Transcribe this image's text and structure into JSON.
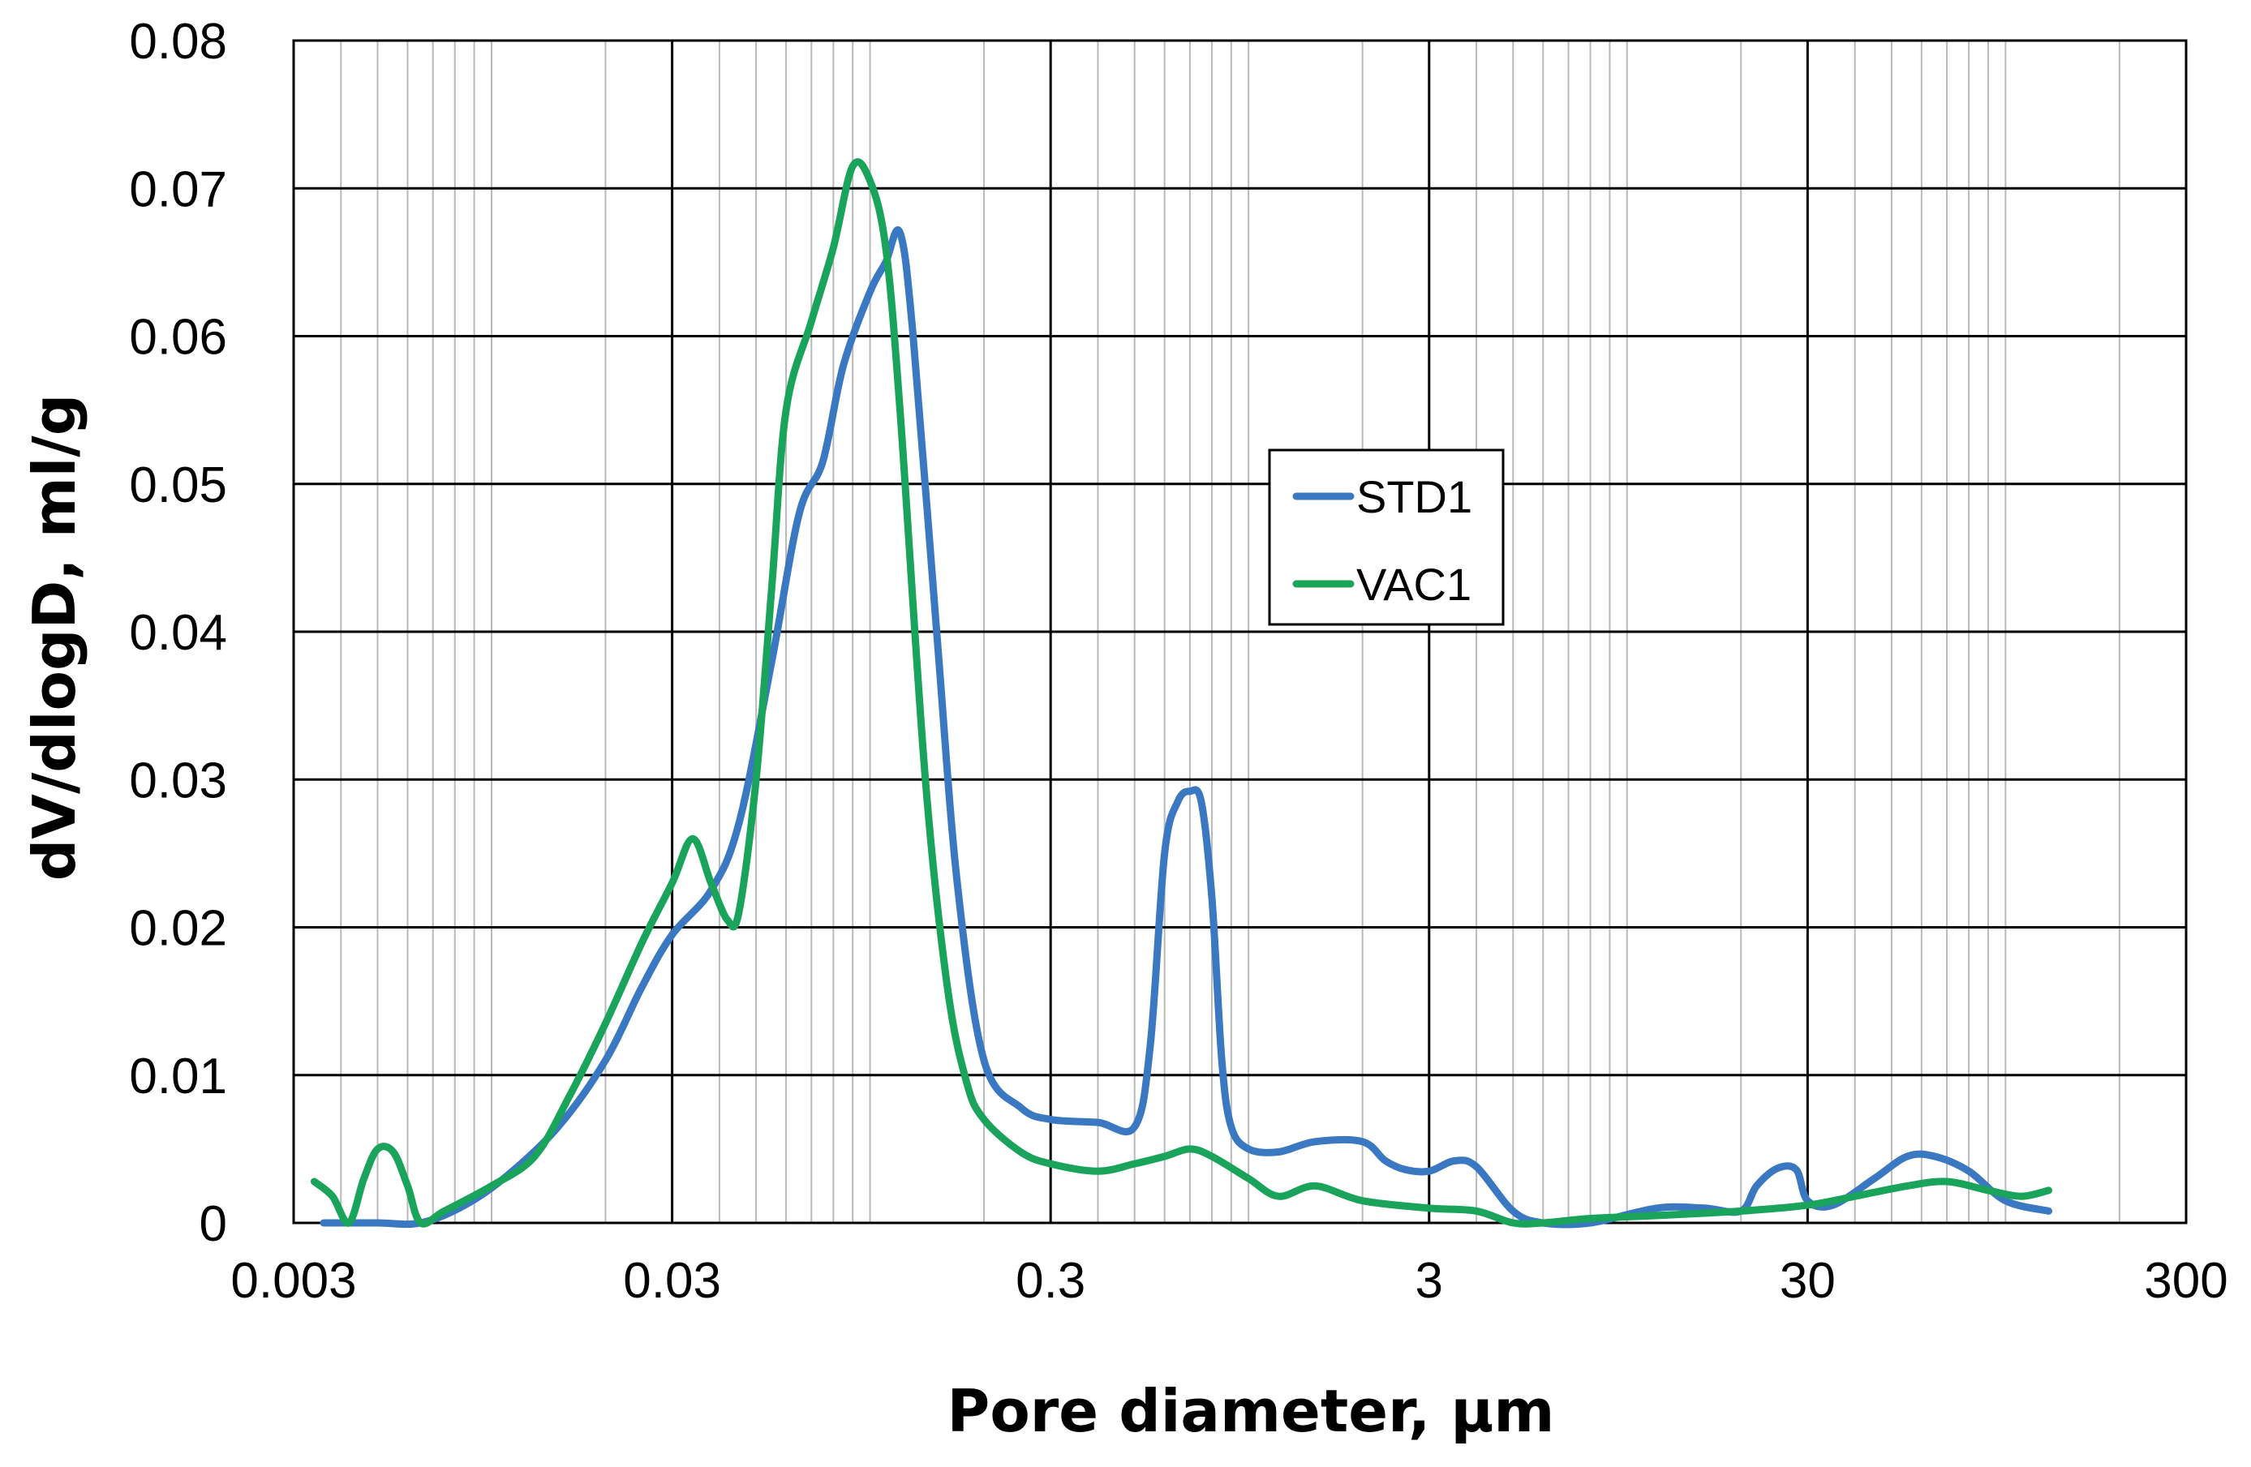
{
  "chart_data": {
    "type": "line",
    "xlabel": "Pore diameter, µm",
    "ylabel": "dV/dlogD, ml/g",
    "x_scale": "log",
    "xlim": [
      0.003,
      300
    ],
    "ylim": [
      0,
      0.08
    ],
    "x_ticks": [
      "0.003",
      "0.03",
      "0.3",
      "3",
      "30",
      "300"
    ],
    "y_ticks": [
      "0",
      "0.01",
      "0.02",
      "0.03",
      "0.04",
      "0.05",
      "0.06",
      "0.07",
      "0.08"
    ],
    "grid": true,
    "legend_position": "center",
    "series": [
      {
        "name": "STD1",
        "color": "#3a78c2",
        "points": [
          [
            0.0036,
            0.0
          ],
          [
            0.005,
            0.0
          ],
          [
            0.0065,
            0.0
          ],
          [
            0.0085,
            0.0012
          ],
          [
            0.011,
            0.0032
          ],
          [
            0.015,
            0.0065
          ],
          [
            0.02,
            0.011
          ],
          [
            0.025,
            0.016
          ],
          [
            0.03,
            0.0195
          ],
          [
            0.038,
            0.0225
          ],
          [
            0.045,
            0.027
          ],
          [
            0.055,
            0.038
          ],
          [
            0.065,
            0.048
          ],
          [
            0.075,
            0.0515
          ],
          [
            0.085,
            0.058
          ],
          [
            0.1,
            0.063
          ],
          [
            0.11,
            0.065
          ],
          [
            0.12,
            0.067
          ],
          [
            0.13,
            0.06
          ],
          [
            0.15,
            0.04
          ],
          [
            0.17,
            0.023
          ],
          [
            0.2,
            0.011
          ],
          [
            0.25,
            0.0078
          ],
          [
            0.3,
            0.007
          ],
          [
            0.4,
            0.0068
          ],
          [
            0.5,
            0.0065
          ],
          [
            0.55,
            0.012
          ],
          [
            0.6,
            0.025
          ],
          [
            0.65,
            0.0285
          ],
          [
            0.7,
            0.0292
          ],
          [
            0.75,
            0.0285
          ],
          [
            0.8,
            0.022
          ],
          [
            0.85,
            0.011
          ],
          [
            0.9,
            0.0065
          ],
          [
            1.0,
            0.005
          ],
          [
            1.2,
            0.0048
          ],
          [
            1.5,
            0.0055
          ],
          [
            2.0,
            0.0055
          ],
          [
            2.3,
            0.0042
          ],
          [
            2.6,
            0.0036
          ],
          [
            3.0,
            0.0035
          ],
          [
            3.5,
            0.0042
          ],
          [
            4.0,
            0.0038
          ],
          [
            5.0,
            0.0008
          ],
          [
            6.0,
            0.0
          ],
          [
            8.0,
            0.0
          ],
          [
            12.0,
            0.001
          ],
          [
            16.0,
            0.001
          ],
          [
            20.0,
            0.0008
          ],
          [
            22.0,
            0.0025
          ],
          [
            25.0,
            0.0037
          ],
          [
            28.0,
            0.0036
          ],
          [
            30.0,
            0.0015
          ],
          [
            35.0,
            0.0012
          ],
          [
            45.0,
            0.003
          ],
          [
            55.0,
            0.0045
          ],
          [
            65.0,
            0.0045
          ],
          [
            80.0,
            0.0035
          ],
          [
            100.0,
            0.0015
          ],
          [
            130.0,
            0.0008
          ]
        ]
      },
      {
        "name": "VAC1",
        "color": "#1aa35a",
        "points": [
          [
            0.0034,
            0.0028
          ],
          [
            0.0038,
            0.0018
          ],
          [
            0.0042,
            0.0
          ],
          [
            0.0046,
            0.003
          ],
          [
            0.005,
            0.005
          ],
          [
            0.0055,
            0.0048
          ],
          [
            0.006,
            0.0025
          ],
          [
            0.0065,
            0.0
          ],
          [
            0.0075,
            0.0008
          ],
          [
            0.01,
            0.0025
          ],
          [
            0.013,
            0.0045
          ],
          [
            0.016,
            0.0085
          ],
          [
            0.02,
            0.0135
          ],
          [
            0.025,
            0.019
          ],
          [
            0.03,
            0.023
          ],
          [
            0.034,
            0.026
          ],
          [
            0.038,
            0.023
          ],
          [
            0.042,
            0.0205
          ],
          [
            0.045,
            0.021
          ],
          [
            0.05,
            0.03
          ],
          [
            0.055,
            0.043
          ],
          [
            0.06,
            0.055
          ],
          [
            0.07,
            0.061
          ],
          [
            0.08,
            0.066
          ],
          [
            0.09,
            0.0715
          ],
          [
            0.1,
            0.0705
          ],
          [
            0.11,
            0.066
          ],
          [
            0.12,
            0.055
          ],
          [
            0.14,
            0.03
          ],
          [
            0.16,
            0.016
          ],
          [
            0.18,
            0.0095
          ],
          [
            0.2,
            0.007
          ],
          [
            0.25,
            0.0048
          ],
          [
            0.3,
            0.004
          ],
          [
            0.4,
            0.0035
          ],
          [
            0.5,
            0.004
          ],
          [
            0.6,
            0.0045
          ],
          [
            0.7,
            0.005
          ],
          [
            0.8,
            0.0045
          ],
          [
            1.0,
            0.003
          ],
          [
            1.2,
            0.0018
          ],
          [
            1.5,
            0.0025
          ],
          [
            2.0,
            0.0015
          ],
          [
            3.0,
            0.001
          ],
          [
            4.0,
            0.0008
          ],
          [
            5.0,
            0.0
          ],
          [
            6.0,
            0.0
          ],
          [
            8.0,
            0.0003
          ],
          [
            12.0,
            0.0005
          ],
          [
            20.0,
            0.0008
          ],
          [
            30.0,
            0.0012
          ],
          [
            40.0,
            0.0018
          ],
          [
            55.0,
            0.0025
          ],
          [
            70.0,
            0.0028
          ],
          [
            90.0,
            0.0022
          ],
          [
            110.0,
            0.0018
          ],
          [
            130.0,
            0.0022
          ]
        ]
      }
    ]
  }
}
